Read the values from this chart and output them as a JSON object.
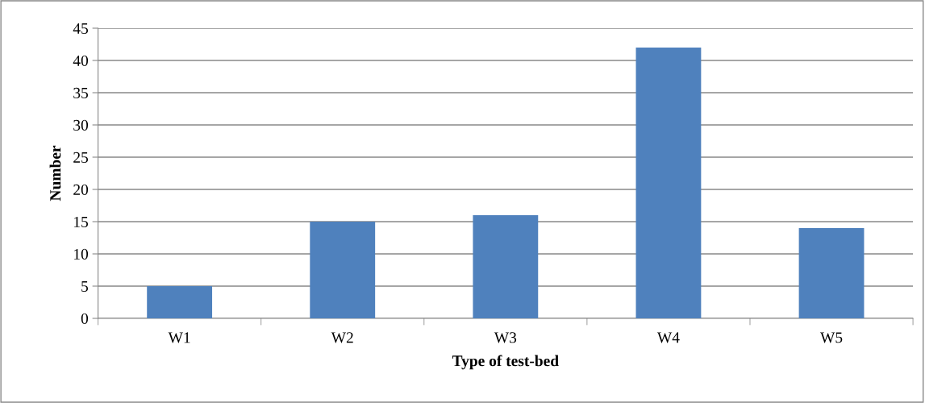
{
  "chart_data": {
    "type": "bar",
    "xlabel": "Type of test-bed",
    "ylabel": "Number",
    "categories": [
      "W1",
      "W2",
      "W3",
      "W4",
      "W5"
    ],
    "values": [
      5,
      15,
      16,
      42,
      14
    ],
    "color": "#4f81bd",
    "ylim": [
      0,
      45
    ],
    "yticks": [
      0,
      5,
      10,
      15,
      20,
      25,
      30,
      35,
      40,
      45
    ],
    "grid": "y",
    "legend": false
  }
}
